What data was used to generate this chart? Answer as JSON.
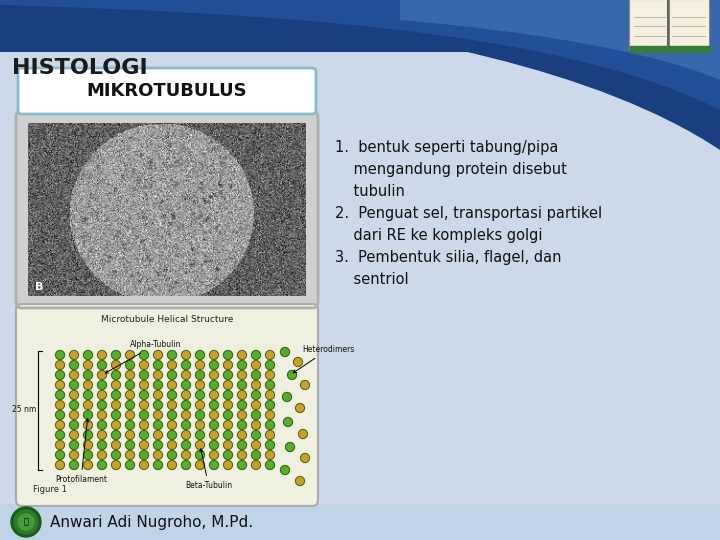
{
  "title": "HISTOLOGI",
  "subtitle": "MIKROTUBULUS",
  "bg_color": "#ccd9ea",
  "header_dark_blue": "#1a3f80",
  "header_mid_blue": "#2a5aaa",
  "header_light_blue": "#5080c0",
  "footer_bg": "#c0d4e8",
  "footer_text": "Anwari Adi Nugroho, M.Pd.",
  "title_color": "#1a1a1a",
  "subtitle_color": "#111111",
  "text_color": "#111111",
  "subtitle_box_edge": "#88bbcc",
  "point1_line1": "1.  bentuk seperti tabung/pipa",
  "point1_line2": "    mengandung protein disebut",
  "point1_line3": "    tubulin",
  "point2_line1": "2.  Penguat sel, transportasi partikel",
  "point2_line2": "    dari RE ke kompleks golgi",
  "point3_line1": "3.  Pembentuk silia, flagel, dan",
  "point3_line2": "    sentriol",
  "bead_green": "#5aaa30",
  "bead_yellow": "#c8a030",
  "bead_outline": "#2a5010",
  "diag_bg": "#f0f0e0",
  "micro_title": "Microtubule Helical Structure"
}
